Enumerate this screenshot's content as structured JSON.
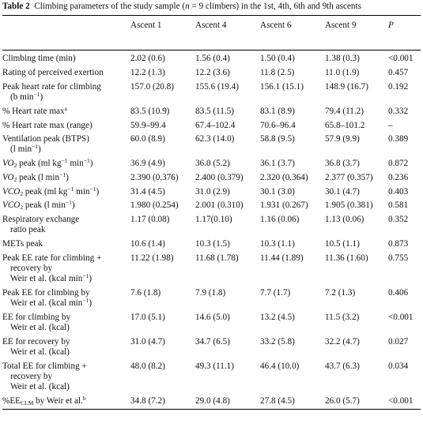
{
  "caption": {
    "label": "Table 2",
    "text_pre": "Climbing parameters of the study sample (",
    "n_var": "n",
    "text_post": " = 9 climbers) in the 1st, 4th, 6th and 9th ascents"
  },
  "headers": [
    "Ascent 1",
    "Ascent 4",
    "Ascent 6",
    "Ascent 9",
    "P"
  ],
  "rows": {
    "climbing_time": {
      "label": "Climbing time (min)",
      "a1": "2.02 (0.6)",
      "a4": "1.56 (0.4)",
      "a6": "1.50 (0.4)",
      "a9": "1.38 (0.3)",
      "p": "<0.001"
    },
    "rpe": {
      "label": "Rating of perceived exertion",
      "a1": "12.2 (1.3)",
      "a4": "12.2 (3.6)",
      "a6": "11.8 (2.5)",
      "a9": "11.0 (1.9)",
      "p": "0.457"
    },
    "peak_hr": {
      "label_1": "Peak heart rate for climbing",
      "label_2_pre": "(b min",
      "label_2_sup": "−1",
      "label_2_post": ")",
      "a1": "157.0 (20.8)",
      "a4": "155.6 (19.4)",
      "a6": "156.1 (15.1)",
      "a9": "148.9 (16.7)",
      "p": "0.192"
    },
    "hr_max": {
      "label": "% Heart rate max",
      "label_sup": "a",
      "a1": "83.5 (10.9)",
      "a4": "83.5 (11.5)",
      "a6": "83.1 (8.9)",
      "a9": "79.4 (11.2)",
      "p": "0.332"
    },
    "hr_max_range": {
      "label": "% Heart rate max (range)",
      "a1": "59.9–99.4",
      "a4": "67.4–102.4",
      "a6": "70.6–96.4",
      "a9": "65.8–101.2",
      "p": "–"
    },
    "ventilation": {
      "label_1": "Ventilation peak (BTPS)",
      "label_2_pre": "(l min",
      "label_2_sup": "−1",
      "label_2_post": ")",
      "a1": "60.0 (8.9)",
      "a4": "62.3 (14.0)",
      "a6": "58.8 (9.5)",
      "a9": "57.9 (9.9)",
      "p": "0.389"
    },
    "vo2_rel": {
      "lbl_v": "VO",
      "lbl_sub": "2",
      "lbl_mid": " peak (ml kg",
      "lbl_sup1": "−1",
      "lbl_mid2": " min",
      "lbl_sup2": "−1",
      "lbl_end": ")",
      "a1": "36.9 (4.9)",
      "a4": "36.0 (5.2)",
      "a6": "36.1 (3.7)",
      "a9": "36.8 (3.7)",
      "p": "0.872"
    },
    "vo2_abs": {
      "lbl_v": "VO",
      "lbl_sub": "2",
      "lbl_mid": " peak (l min",
      "lbl_sup1": "−1",
      "lbl_end": ")",
      "a1": "2.390 (0.376)",
      "a4": "2.400 (0.379)",
      "a6": "2.320 (0.364)",
      "a9": "2.377 (0.357)",
      "p": "0.236"
    },
    "vco2_rel": {
      "lbl_v": "VCO",
      "lbl_sub": "2",
      "lbl_mid": " peak (ml kg",
      "lbl_sup1": "−1",
      "lbl_mid2": " min",
      "lbl_sup2": "−1",
      "lbl_end": ")",
      "a1": "31.4 (4.5)",
      "a4": "31.0 (2.9)",
      "a6": "30.1 (3.0)",
      "a9": "30.1 (4.7)",
      "p": "0.403"
    },
    "vco2_abs": {
      "lbl_v": "VCO",
      "lbl_sub": "2",
      "lbl_mid": " peak (l min",
      "lbl_sup1": "−1",
      "lbl_end": ")",
      "a1": "1.980 (0.254)",
      "a4": "2.001 (0.310)",
      "a6": "1.931 (0.267)",
      "a9": "1.905 (0.381)",
      "p": "0.581"
    },
    "rer": {
      "label_1": "Respiratory exchange",
      "label_2": "ratio peak",
      "a1": "1.17 (0.08)",
      "a4": "1.17(0.10)",
      "a6": "1.16 (0.06)",
      "a9": "1.13 (0.06)",
      "p": "0.352"
    },
    "mets": {
      "label": "METs peak",
      "a1": "10.6 (1.4)",
      "a4": "10.3 (1.5)",
      "a6": "10.3 (1.1)",
      "a9": "10.5 (1.1)",
      "p": "0.873"
    },
    "peak_ee_rate": {
      "label_1": "Peak EE rate for climbing +",
      "label_2": "recovery by",
      "label_3_pre": "Weir et al. (kcal min",
      "label_3_sup": "−1",
      "label_3_post": ")",
      "a1": "11.22 (1.98)",
      "a4": "11.68 (1.78)",
      "a6": "11.44 (1.89)",
      "a9": "11.36 (1.60)",
      "p": "0.755"
    },
    "peak_ee_climb": {
      "label_1": "Peak EE for climbing by",
      "label_2_pre": "Weir et al. (kcal min",
      "label_2_sup": "−1",
      "label_2_post": ")",
      "a1": "7.6 (1.8)",
      "a4": "7.9 (1.8)",
      "a6": "7.7 (1.7)",
      "a9": "7.2 (1.3)",
      "p": "0.406"
    },
    "ee_climb": {
      "label_1": "EE for climbing by",
      "label_2": "Weir et al. (kcal)",
      "a1": "17.0 (5.1)",
      "a4": "14.6 (5.0)",
      "a6": "13.2 (4.5)",
      "a9": "11.5 (3.2)",
      "p": "<0.001"
    },
    "ee_recovery": {
      "label_1": "EE for recovery by",
      "label_2": "Weir et al. (kcal)",
      "a1": "31.0 (4.7)",
      "a4": "34.7 (6.5)",
      "a6": "33.2 (5.8)",
      "a9": "32.2 (4.7)",
      "p": "0.027"
    },
    "total_ee": {
      "label_1": "Total EE for climbing +",
      "label_2": "recovery by",
      "label_3": "Weir et al. (kcal)",
      "a1": "48.0 (8.2)",
      "a4": "49.3 (11.1)",
      "a6": "46.4 (10.0)",
      "a9": "43.7 (6.3)",
      "p": "0.034"
    },
    "pct_ee_clm": {
      "lbl_pre": "%EE",
      "lbl_sub": "CLM",
      "lbl_post": " by Weir et al.",
      "lbl_sup": "b",
      "a1": "34.8 (7.2)",
      "a4": "29.0 (4.8)",
      "a6": "27.8 (4.5)",
      "a9": "26.0 (5.7)",
      "p": "<0.001"
    }
  }
}
